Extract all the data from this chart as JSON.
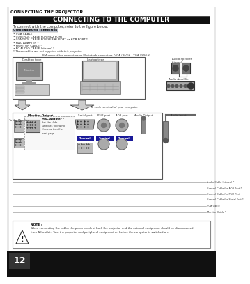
{
  "page_bg": "#ffffff",
  "outer_bg": "#f0f0f0",
  "header_text": "CONNECTING THE PROJECTOR",
  "title_text": "CONNECTING TO THE COMPUTER",
  "title_bg": "#111111",
  "title_color": "#ffffff",
  "subtitle": "To connect with the computer, refer to the figure below.",
  "used_cables_label": "Used cables for connection",
  "cables": [
    "• VGA CABLE",
    "• CONTROL CABLE FOR PS/2 PORT",
    "• CONTROL CABLE FOR SERIAL PORT or ADB PORT *",
    "• MAC ADAPTER *",
    "• MONITOR CABLE *",
    "• PC AUDIO CABLE (stereo) *"
  ],
  "cables_note": "* These cables are not supplied with this projector.",
  "compat_text": "IBM-compatible computers or Macintosh computers (VGA / SVGA / XGA / SXGA)",
  "desktop_label": "Desktop type",
  "laptop_label": "Laptop type",
  "monitor_label": "Monitor",
  "to_monitor_label": "To the Monitor",
  "to_each_label": "To each terminal of your computer",
  "monitor_output_label": "Monitor Output",
  "serial_port_label": "Serial port",
  "ps2_port_label": "PS/2 port",
  "adb_port_label": "ADB port",
  "audio_output_label": "Audio Output",
  "audio_input_label": "Audio Input",
  "audio_speaker_label": "Audio Speaker\n(stereo)",
  "audio_amplifier_label": "Audio Amplifier",
  "mac_adapter_label": "MAC Adapter *",
  "mac_adapter_note": "Set the slide\nswitches following\nthis chart on the\nnext page.",
  "terminal_color": "#1a1a99",
  "terminal_labels": [
    "Terminal",
    "Terminal",
    "Terminal"
  ],
  "cable_labels": [
    "Audio Cable (stereo) *",
    "Control Cable for ADB Port *",
    "Control Cable for PS/2 Port",
    "Control Cable for Serial Port *",
    "VGA Cable",
    "Monitor Cable *"
  ],
  "note_text": "NOTE :",
  "note_body": "When connecting the cable, the power cords of both the projector and the external equipment should be disconnected\nfrom AC outlet.  Turn the projector and peripheral equipment on before the computer is switched on.",
  "page_number": "12",
  "page_num_bg": "#111111",
  "page_num_color": "#ffffff",
  "gray_light": "#cccccc",
  "gray_med": "#999999",
  "gray_dark": "#666666",
  "gray_darker": "#444444"
}
